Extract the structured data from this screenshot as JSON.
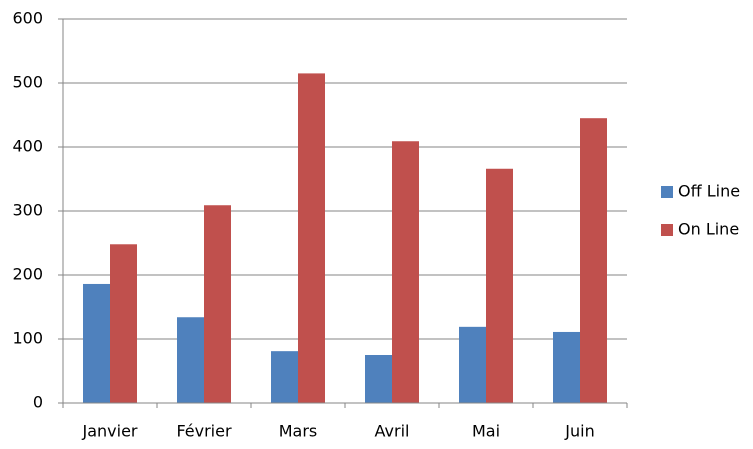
{
  "chart_data": {
    "type": "bar",
    "categories": [
      "Janvier",
      "Février",
      "Mars",
      "Avril",
      "Mai",
      "Juin"
    ],
    "series": [
      {
        "name": "Off Line",
        "color": "#4f81bd",
        "values": [
          186,
          134,
          81,
          75,
          119,
          111
        ]
      },
      {
        "name": "On Line",
        "color": "#c0504d",
        "values": [
          248,
          309,
          515,
          409,
          366,
          445
        ]
      }
    ],
    "ylim": [
      0,
      600
    ],
    "yticks": [
      0,
      100,
      200,
      300,
      400,
      500,
      600
    ],
    "grid": true,
    "legend": "right"
  }
}
